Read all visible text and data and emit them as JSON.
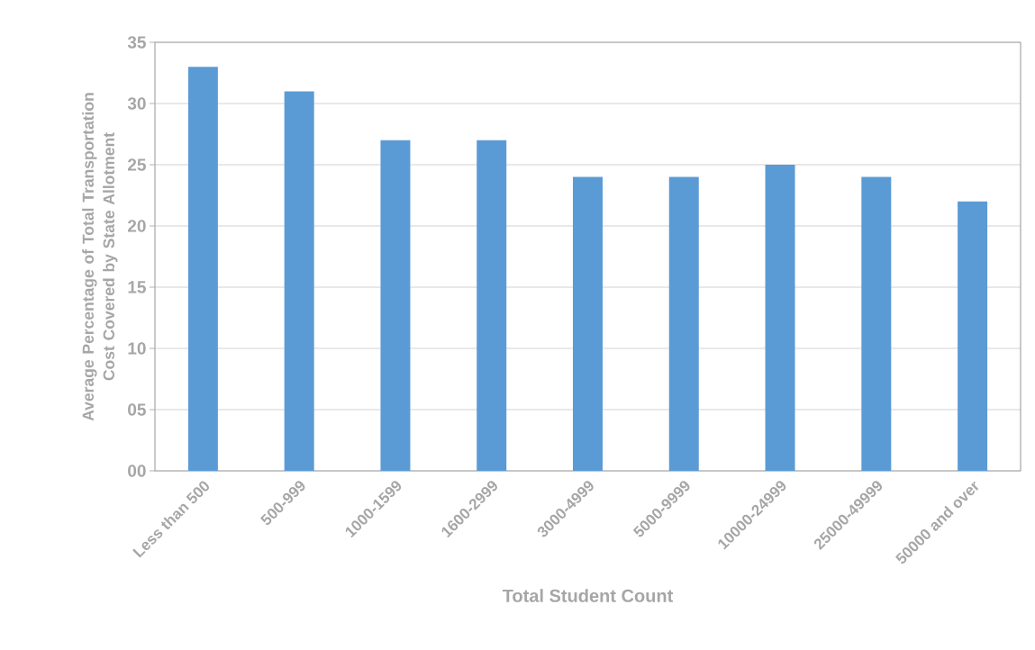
{
  "chart_data": {
    "type": "bar",
    "xlabel": "Total Student Count",
    "ylabel": "Average Percentage of Total Transportation Cost Covered by State Allotment",
    "categories": [
      "Less than 500",
      "500-999",
      "1000-1599",
      "1600-2999",
      "3000-4999",
      "5000-9999",
      "10000-24999",
      "25000-49999",
      "50000 and over"
    ],
    "values": [
      33,
      31,
      27,
      27,
      24,
      24,
      25,
      24,
      22
    ],
    "color": "#5b9bd5",
    "ylim": [
      0,
      35
    ],
    "yticks": [
      {
        "value": 0,
        "label": "00"
      },
      {
        "value": 5,
        "label": "05"
      },
      10,
      15,
      20,
      25,
      30,
      35
    ],
    "grid": "y"
  }
}
